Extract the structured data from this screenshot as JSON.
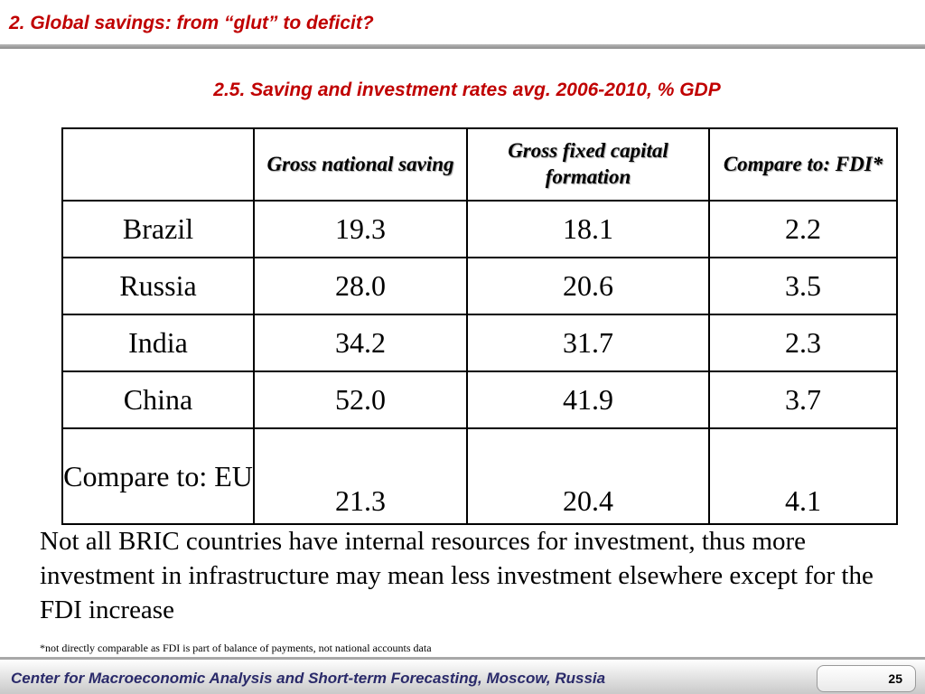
{
  "header": {
    "title": "2. Global savings: from “glut” to deficit?"
  },
  "subtitle": "2.5. Saving and investment rates avg. 2006-2010, % GDP",
  "table": {
    "columns": [
      "",
      "Gross national saving",
      "Gross fixed capital formation",
      "Compare to: FDI*"
    ],
    "rows": [
      {
        "label": "Brazil",
        "saving": "19.3",
        "gfcf": "18.1",
        "fdi": "2.2"
      },
      {
        "label": "Russia",
        "saving": "28.0",
        "gfcf": "20.6",
        "fdi": "3.5"
      },
      {
        "label": "India",
        "saving": "34.2",
        "gfcf": "31.7",
        "fdi": "2.3"
      },
      {
        "label": "China",
        "saving": "52.0",
        "gfcf": "41.9",
        "fdi": "3.7"
      },
      {
        "label": "Compare to: EU",
        "saving": "21.3",
        "gfcf": "20.4",
        "fdi": "4.1"
      }
    ]
  },
  "note": "Not all BRIC countries have internal resources for investment, thus more investment in infrastructure may mean less investment elsewhere except for the FDI increase",
  "footnote": "*not directly comparable as FDI is part of balance of payments, not national accounts data",
  "footer": {
    "org": "Center for Macroeconomic Analysis and Short-term Forecasting, Moscow, Russia",
    "page": "25"
  }
}
